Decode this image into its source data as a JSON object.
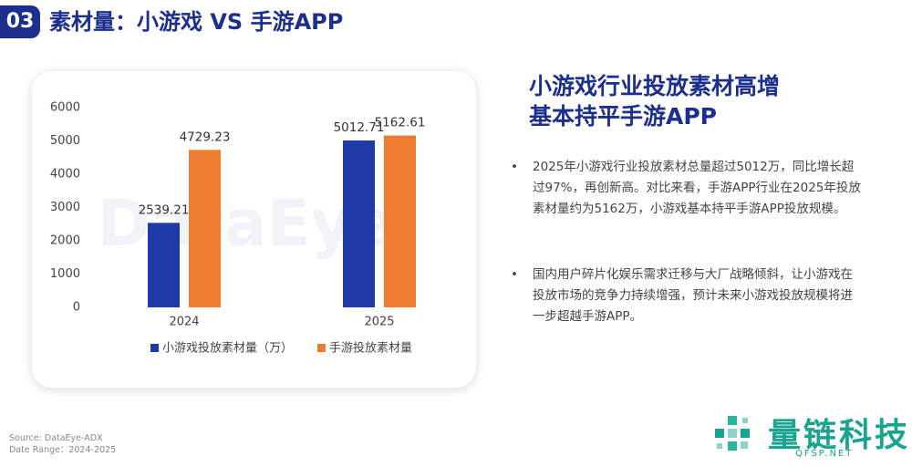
{
  "header": {
    "badge": "03",
    "title": "素材量：小游戏 VS 手游APP"
  },
  "chart_data": {
    "type": "bar",
    "categories": [
      "2024",
      "2025"
    ],
    "series": [
      {
        "name": "小游戏投放素材量（万）",
        "color": "#1f3aa8",
        "values": [
          2539.21,
          5012.71
        ]
      },
      {
        "name": "手游投放素材量",
        "color": "#ef7d31",
        "values": [
          4729.23,
          5162.61
        ]
      }
    ],
    "ylim": [
      0,
      6000
    ],
    "yticks": [
      0,
      1000,
      2000,
      3000,
      4000,
      5000,
      6000
    ],
    "grid": false,
    "legend": "bottom",
    "watermark": "DataEye"
  },
  "heading": [
    "小游戏行业投放素材高增",
    "基本持平手游APP"
  ],
  "bullets": [
    "2025年小游戏行业投放素材总量超过5012万，同比增长超过97%，再创新高。对比来看，手游APP行业在2025年投放素材量约为5162万，小游戏基本持平手游APP投放规模。",
    "国内用户碎片化娱乐需求迁移与大厂战略倾斜，让小游戏在投放市场的竞争力持续增强，预计未来小游戏投放规模将进一步超越手游APP。"
  ],
  "source": [
    "Source: DataEye-ADX",
    "Date Range：2024-2025"
  ],
  "logo": {
    "name": "量链科技",
    "site": "QFSP.NET"
  }
}
